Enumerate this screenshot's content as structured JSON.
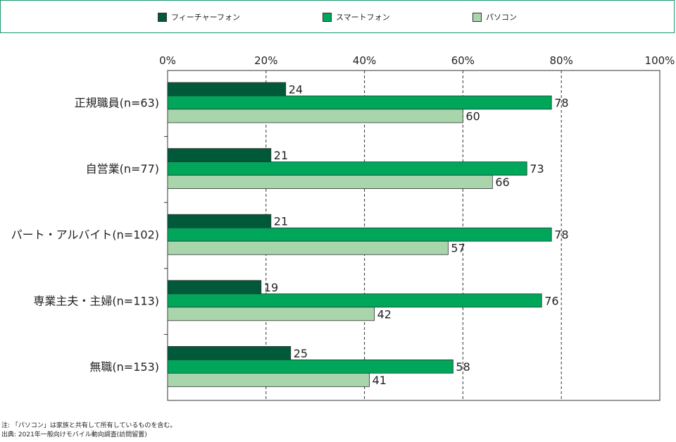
{
  "chart_data": {
    "type": "bar",
    "orientation": "horizontal",
    "categories": [
      "正規職員(n=63)",
      "自営業(n=77)",
      "パート・アルバイト(n=102)",
      "専業主夫・主婦(n=113)",
      "無職(n=153)"
    ],
    "series": [
      {
        "name": "フィーチャーフォン",
        "color": "#005a3a",
        "values": [
          24,
          21,
          21,
          19,
          25
        ]
      },
      {
        "name": "スマートフォン",
        "color": "#00a65a",
        "values": [
          78,
          73,
          78,
          76,
          58
        ]
      },
      {
        "name": "パソコン",
        "color": "#a9d5ad",
        "values": [
          60,
          66,
          57,
          42,
          41
        ]
      }
    ],
    "x_ticks": [
      "0%",
      "20%",
      "40%",
      "60%",
      "80%",
      "100%"
    ],
    "xlim": [
      0,
      100
    ],
    "grid": "dashed vertical",
    "legend_position": "top"
  },
  "notes": {
    "note": "注: 「パソコン」は家族と共有して所有しているものを含む。",
    "source": "出典: 2021年一般向けモバイル動向調査(訪問留置)"
  }
}
